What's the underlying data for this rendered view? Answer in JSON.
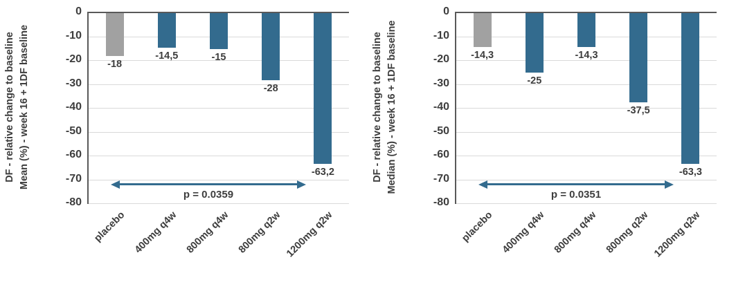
{
  "page": {
    "background": "#ffffff"
  },
  "colors": {
    "bar_accent": "#336b8e",
    "bar_placebo": "#a1a1a1",
    "axis_line": "#595959",
    "gridline": "#d9d9d9",
    "text": "#3d3d3d",
    "arrow": "#336b8e"
  },
  "chart_data": [
    {
      "type": "bar",
      "panel": "left",
      "y_axis_title_line1": "DF - relative change to baseline",
      "y_axis_title_line2": "Mean (%) - week 16 + 1DF baseline",
      "categories": [
        "placebo",
        "400mg q4w",
        "800mg q4w",
        "800mg q2w",
        "1200mg q2w"
      ],
      "values": [
        -18,
        -14.5,
        -15,
        -28,
        -63.2
      ],
      "value_labels": [
        "-18",
        "-14,5",
        "-15",
        "-28",
        "-63,2"
      ],
      "bar_colors": [
        "#a1a1a1",
        "#336b8e",
        "#336b8e",
        "#336b8e",
        "#336b8e"
      ],
      "ylim": [
        -80,
        0
      ],
      "ytick_labels": [
        "0",
        "-10",
        "-20",
        "-30",
        "-40",
        "-50",
        "-60",
        "-70",
        "-80"
      ],
      "grid": true,
      "legend": "none",
      "annotation": "p = 0.0359"
    },
    {
      "type": "bar",
      "panel": "right",
      "y_axis_title_line1": "DF - relative change to baseline",
      "y_axis_title_line2": "Median (%) - week 16 + 1DF baseline",
      "categories": [
        "placebo",
        "400mg q4w",
        "800mg q4w",
        "800mg q2w",
        "1200mg q2w"
      ],
      "values": [
        -14.3,
        -25,
        -14.3,
        -37.5,
        -63.3
      ],
      "value_labels": [
        "-14,3",
        "-25",
        "-14,3",
        "-37,5",
        "-63,3"
      ],
      "bar_colors": [
        "#a1a1a1",
        "#336b8e",
        "#336b8e",
        "#336b8e",
        "#336b8e"
      ],
      "ylim": [
        -80,
        0
      ],
      "ytick_labels": [
        "0",
        "-10",
        "-20",
        "-30",
        "-40",
        "-50",
        "-60",
        "-70",
        "-80"
      ],
      "grid": true,
      "legend": "none",
      "annotation": "p = 0.0351"
    }
  ]
}
